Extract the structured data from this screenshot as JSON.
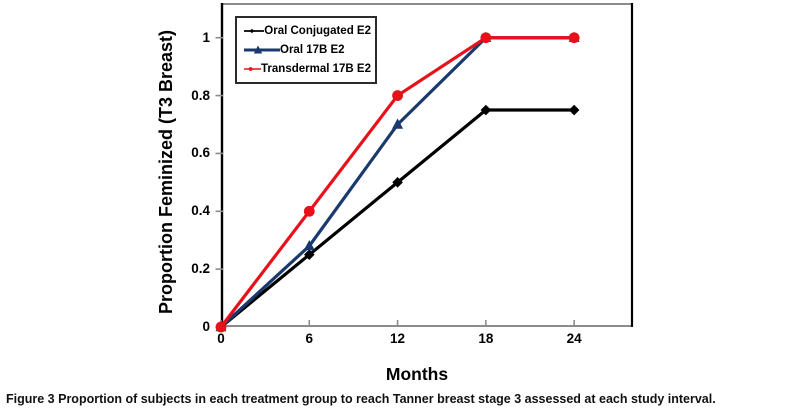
{
  "figure": {
    "caption_label": "Figure 3",
    "caption_text": "Proportion of subjects in each treatment group to reach Tanner breast stage 3 assessed at each study interval."
  },
  "colors": {
    "series_black": "#000000",
    "series_blue": "#1A3A6E",
    "series_red": "#E8111A",
    "frame_gray": "#8C8C8C",
    "frame_black": "#000000",
    "legend_border": "#2B2B2B"
  },
  "chart_data": {
    "type": "line",
    "x": [
      0,
      6,
      12,
      18,
      24
    ],
    "series": [
      {
        "name": "Oral Conjugated E2",
        "values": [
          0,
          0.25,
          0.5,
          0.75,
          0.75
        ],
        "color": "#000000",
        "marker": "diamond"
      },
      {
        "name": "Oral 17B E2",
        "values": [
          0,
          0.28,
          0.7,
          1.0,
          1.0
        ],
        "color": "#1A3A6E",
        "marker": "triangle"
      },
      {
        "name": "Transdermal 17B E2",
        "values": [
          0,
          0.4,
          0.8,
          1.0,
          1.0
        ],
        "color": "#E8111A",
        "marker": "circle"
      }
    ],
    "title": "",
    "xlabel": "Months",
    "ylabel": "Proportion Feminized (T3 Breast)",
    "xlim": [
      0,
      28
    ],
    "ylim": [
      0,
      1.12
    ],
    "x_ticks": [
      0,
      6,
      12,
      18,
      24
    ],
    "x_tick_labels": [
      "0",
      "6",
      "12",
      "18",
      "24"
    ],
    "y_ticks": [
      0,
      0.2,
      0.4,
      0.6,
      0.8,
      1
    ],
    "y_tick_labels": [
      "0",
      "0.2",
      "0.4",
      "0.6",
      "0.8",
      "1"
    ],
    "grid": false,
    "legend_position": "top-left"
  }
}
